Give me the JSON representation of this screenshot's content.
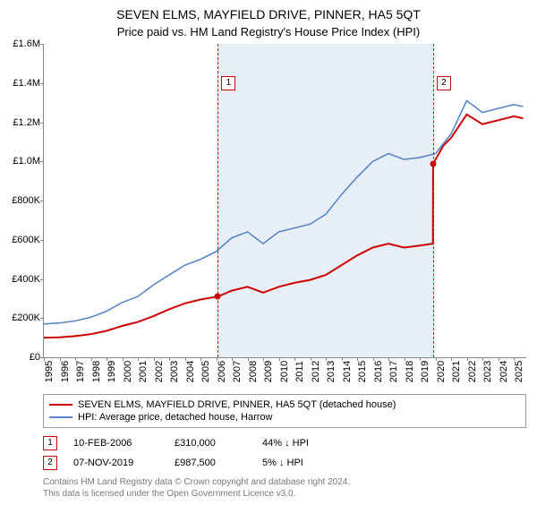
{
  "title": "SEVEN ELMS, MAYFIELD DRIVE, PINNER, HA5 5QT",
  "subtitle": "Price paid vs. HM Land Registry's House Price Index (HPI)",
  "chart": {
    "type": "line",
    "background_color": "#ffffff",
    "axis_color": "#888888",
    "text_color": "#000000",
    "xlim": [
      1995,
      2025.8
    ],
    "ylim": [
      0,
      1600000
    ],
    "y_ticks": [
      {
        "v": 0,
        "label": "£0"
      },
      {
        "v": 200000,
        "label": "£200K"
      },
      {
        "v": 400000,
        "label": "£400K"
      },
      {
        "v": 600000,
        "label": "£600K"
      },
      {
        "v": 800000,
        "label": "£800K"
      },
      {
        "v": 1000000,
        "label": "£1.0M"
      },
      {
        "v": 1200000,
        "label": "£1.2M"
      },
      {
        "v": 1400000,
        "label": "£1.4M"
      },
      {
        "v": 1600000,
        "label": "£1.6M"
      }
    ],
    "x_ticks": [
      1995,
      1996,
      1997,
      1998,
      1999,
      2000,
      2001,
      2002,
      2003,
      2004,
      2005,
      2006,
      2007,
      2008,
      2009,
      2010,
      2011,
      2012,
      2013,
      2014,
      2015,
      2016,
      2017,
      2018,
      2019,
      2020,
      2021,
      2022,
      2023,
      2024,
      2025
    ],
    "shade": {
      "from": 2006.11,
      "to": 2019.85,
      "color": "#e8eef7"
    },
    "vlines": [
      {
        "x": 2006.11,
        "color": "#cc0000",
        "dash": true
      },
      {
        "x": 2019.85,
        "color": "#cc0000",
        "dash": true
      }
    ],
    "markers_on_chart": [
      {
        "n": "1",
        "x": 2006.11,
        "y_top": 36,
        "border": "#cc0000"
      },
      {
        "n": "2",
        "x": 2019.85,
        "y_top": 36,
        "border": "#cc0000"
      }
    ],
    "series": [
      {
        "name": "SEVEN ELMS, MAYFIELD DRIVE, PINNER, HA5 5QT (detached house)",
        "color": "#cc0000",
        "width": 2,
        "points": [
          [
            1995.0,
            100000
          ],
          [
            1996.0,
            102000
          ],
          [
            1997.0,
            108000
          ],
          [
            1998.0,
            118000
          ],
          [
            1999.0,
            135000
          ],
          [
            2000.0,
            160000
          ],
          [
            2001.0,
            180000
          ],
          [
            2002.0,
            210000
          ],
          [
            2003.0,
            245000
          ],
          [
            2004.0,
            275000
          ],
          [
            2005.0,
            295000
          ],
          [
            2006.11,
            310000
          ],
          [
            2007.0,
            340000
          ],
          [
            2008.0,
            360000
          ],
          [
            2009.0,
            330000
          ],
          [
            2010.0,
            360000
          ],
          [
            2011.0,
            380000
          ],
          [
            2012.0,
            395000
          ],
          [
            2013.0,
            420000
          ],
          [
            2014.0,
            470000
          ],
          [
            2015.0,
            520000
          ],
          [
            2016.0,
            560000
          ],
          [
            2017.0,
            580000
          ],
          [
            2018.0,
            560000
          ],
          [
            2019.0,
            570000
          ],
          [
            2019.84,
            580000
          ],
          [
            2019.85,
            987500
          ],
          [
            2020.5,
            1080000
          ],
          [
            2021.0,
            1120000
          ],
          [
            2022.0,
            1240000
          ],
          [
            2023.0,
            1190000
          ],
          [
            2024.0,
            1210000
          ],
          [
            2025.0,
            1230000
          ],
          [
            2025.6,
            1220000
          ]
        ]
      },
      {
        "name": "HPI: Average price, detached house, Harrow",
        "color": "#5b87c7",
        "width": 1.6,
        "points": [
          [
            1995.0,
            170000
          ],
          [
            1996.0,
            175000
          ],
          [
            1997.0,
            185000
          ],
          [
            1998.0,
            205000
          ],
          [
            1999.0,
            235000
          ],
          [
            2000.0,
            280000
          ],
          [
            2001.0,
            310000
          ],
          [
            2002.0,
            370000
          ],
          [
            2003.0,
            420000
          ],
          [
            2004.0,
            470000
          ],
          [
            2005.0,
            500000
          ],
          [
            2006.0,
            540000
          ],
          [
            2007.0,
            610000
          ],
          [
            2008.0,
            640000
          ],
          [
            2009.0,
            580000
          ],
          [
            2010.0,
            640000
          ],
          [
            2011.0,
            660000
          ],
          [
            2012.0,
            680000
          ],
          [
            2013.0,
            730000
          ],
          [
            2014.0,
            830000
          ],
          [
            2015.0,
            920000
          ],
          [
            2016.0,
            1000000
          ],
          [
            2017.0,
            1040000
          ],
          [
            2018.0,
            1010000
          ],
          [
            2019.0,
            1020000
          ],
          [
            2020.0,
            1040000
          ],
          [
            2021.0,
            1140000
          ],
          [
            2022.0,
            1310000
          ],
          [
            2023.0,
            1250000
          ],
          [
            2024.0,
            1270000
          ],
          [
            2025.0,
            1290000
          ],
          [
            2025.6,
            1280000
          ]
        ]
      }
    ],
    "sale_points": [
      {
        "x": 2006.11,
        "y": 310000,
        "color": "#cc0000"
      },
      {
        "x": 2019.85,
        "y": 987500,
        "color": "#cc0000"
      }
    ]
  },
  "legend": {
    "border_color": "#999999",
    "items": [
      {
        "color": "#cc0000",
        "label": "SEVEN ELMS, MAYFIELD DRIVE, PINNER, HA5 5QT (detached house)"
      },
      {
        "color": "#5b87c7",
        "label": "HPI: Average price, detached house, Harrow"
      }
    ]
  },
  "transactions": [
    {
      "n": "1",
      "border": "#cc0000",
      "date": "10-FEB-2006",
      "price": "£310,000",
      "pct": "44% ↓ HPI"
    },
    {
      "n": "2",
      "border": "#cc0000",
      "date": "07-NOV-2019",
      "price": "£987,500",
      "pct": "5% ↓ HPI"
    }
  ],
  "footer_line1": "Contains HM Land Registry data © Crown copyright and database right 2024.",
  "footer_line2": "This data is licensed under the Open Government Licence v3.0."
}
